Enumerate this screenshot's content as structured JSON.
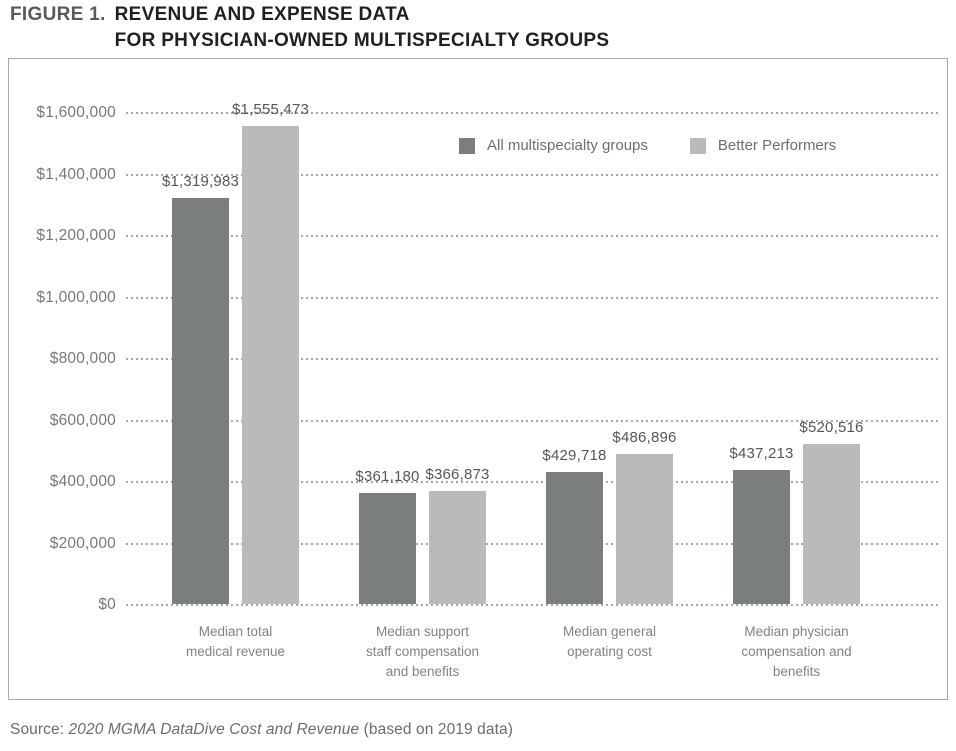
{
  "figure": {
    "label": "FIGURE 1.",
    "title_line1": "REVENUE AND EXPENSE DATA",
    "title_line2": "FOR PHYSICIAN-OWNED MULTISPECIALTY GROUPS"
  },
  "legend": {
    "items": [
      {
        "label": "All multispecialty groups",
        "color": "#7a7f7d"
      },
      {
        "label": "Better Performers",
        "color": "#b9babc"
      }
    ]
  },
  "source": {
    "prefix": "Source: ",
    "italic": "2020 MGMA DataDive Cost and Revenue",
    "suffix": " (based on 2019 data)"
  },
  "chart_data": {
    "type": "bar",
    "title": "Revenue and expense data for physician-owned multispecialty groups",
    "categories": [
      "Median total\nmedical revenue",
      "Median support\nstaff compensation\nand benefits",
      "Median general\noperating cost",
      "Median physician\ncompensation and\nbenefits"
    ],
    "series": [
      {
        "name": "All multispecialty groups",
        "color": "#7a7f7d",
        "values": [
          1319983,
          361180,
          429718,
          437213
        ],
        "labels": [
          "$1,319,983",
          "$361,180",
          "$429,718",
          "$437,213"
        ]
      },
      {
        "name": "Better Performers",
        "color": "#b9babc",
        "values": [
          1555473,
          366873,
          486896,
          520516
        ],
        "labels": [
          "$1,555,473",
          "$366,873",
          "$486,896",
          "$520,516"
        ]
      }
    ],
    "xlabel": "",
    "ylabel": "",
    "ylim": [
      0,
      1600000
    ],
    "y_ticks": [
      "$1,600,000",
      "$1,400,000",
      "$1,200,000",
      "$1,000,000",
      "$800,000",
      "$600,000",
      "$400,000",
      "$200,000",
      "$0"
    ],
    "grid": "horizontal-dotted",
    "legend_position": "top-right-inside",
    "bar_colors": {
      "dark": "#7a7f7d",
      "light": "#b9babc"
    },
    "gridline_color": "#a4a6a8",
    "tick_label_color": "#77787b",
    "value_label_color": "#55565a",
    "category_label_color": "#808285"
  }
}
